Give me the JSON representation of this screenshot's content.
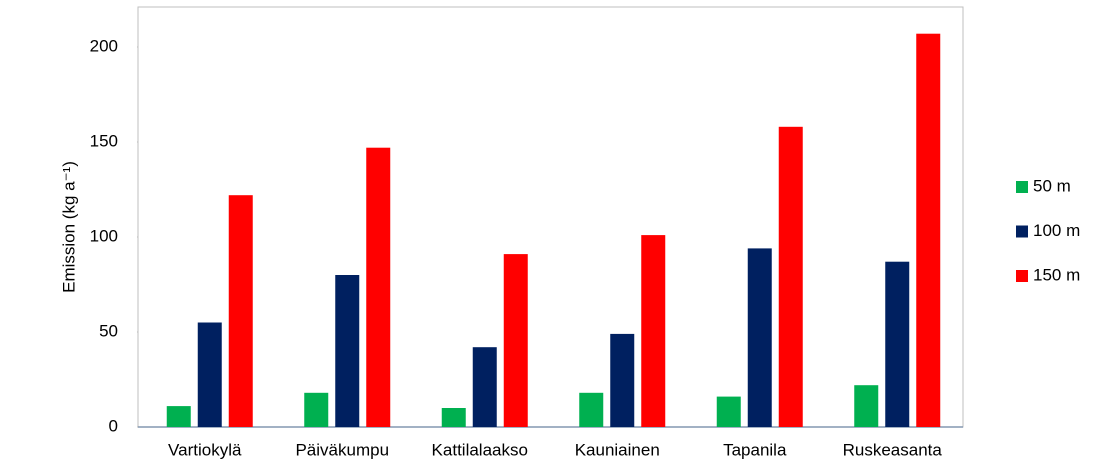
{
  "chart_data": {
    "type": "bar",
    "y_label": "Emission (kg a⁻¹)",
    "categories": [
      "Vartiokylä",
      "Päiväkumpu",
      "Kattilalaakso",
      "Kauniainen",
      "Tapanila",
      "Ruskeasanta"
    ],
    "series": [
      {
        "name": "50 m",
        "color": "#00b050",
        "values": [
          11,
          18,
          10,
          18,
          16,
          22
        ]
      },
      {
        "name": "100 m",
        "color": "#002060",
        "values": [
          55,
          80,
          42,
          49,
          94,
          87
        ]
      },
      {
        "name": "150 m",
        "color": "#ff0000",
        "values": [
          122,
          147,
          91,
          101,
          158,
          207
        ]
      }
    ],
    "ylim": [
      0,
      220
    ],
    "yticks": [
      0,
      50,
      100,
      150,
      200
    ],
    "legend": "right"
  }
}
